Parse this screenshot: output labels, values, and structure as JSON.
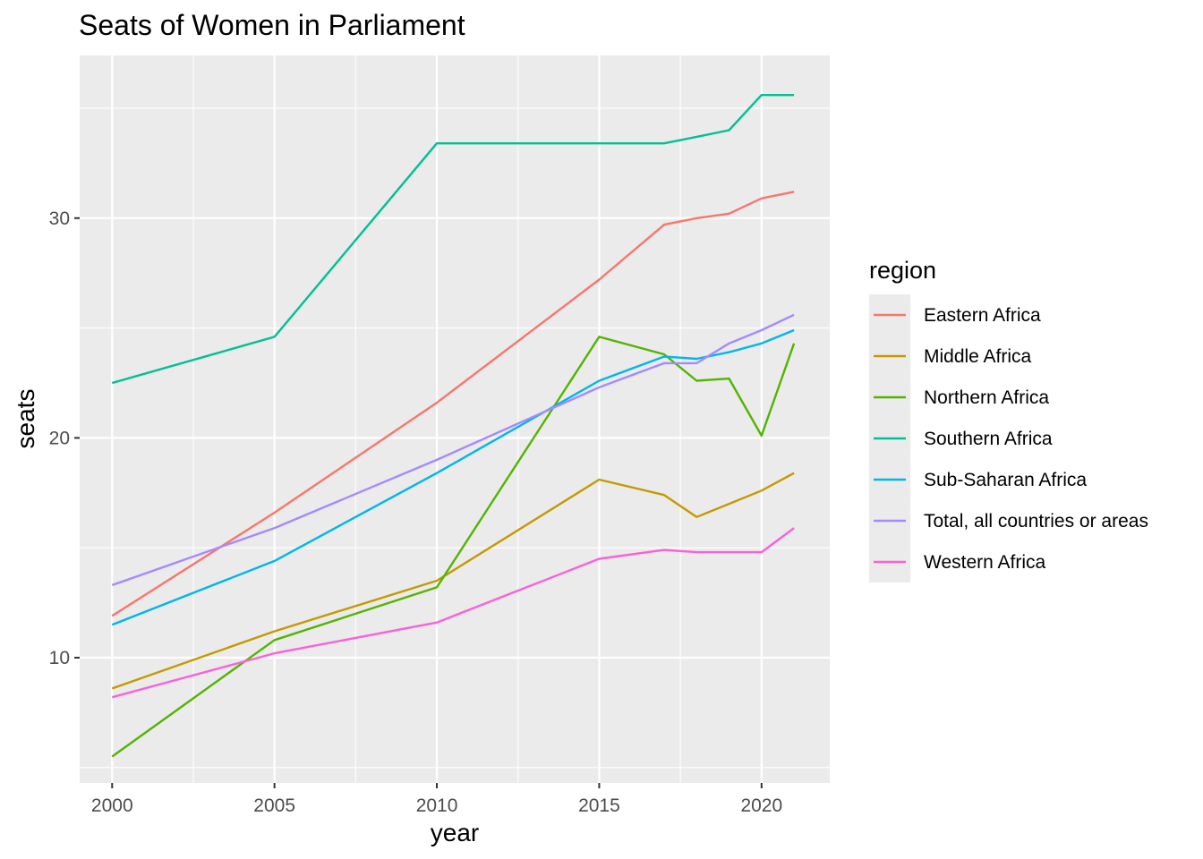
{
  "chart_data": {
    "type": "line",
    "title": "Seats of Women in Parliament",
    "xlabel": "year",
    "ylabel": "seats",
    "xlim": [
      1999,
      2022.1
    ],
    "ylim": [
      4.3,
      37.4
    ],
    "x_ticks": [
      2000,
      2005,
      2010,
      2015,
      2020
    ],
    "y_ticks": [
      10,
      20,
      30
    ],
    "grid": true,
    "legend": {
      "title": "region",
      "placement": "right"
    },
    "series": [
      {
        "name": "Eastern Africa",
        "color": "#F8766D",
        "x": [
          2000,
          2005,
          2010,
          2015,
          2017,
          2018,
          2019,
          2020,
          2021
        ],
        "y": [
          11.9,
          16.6,
          21.6,
          27.2,
          29.7,
          30.0,
          30.2,
          30.9,
          31.2
        ]
      },
      {
        "name": "Middle Africa",
        "color": "#C49A00",
        "x": [
          2000,
          2005,
          2010,
          2015,
          2017,
          2018,
          2019,
          2020,
          2021
        ],
        "y": [
          8.6,
          11.2,
          13.5,
          18.1,
          17.4,
          16.4,
          17.0,
          17.6,
          18.4
        ]
      },
      {
        "name": "Northern Africa",
        "color": "#53B400",
        "x": [
          2000,
          2005,
          2010,
          2015,
          2017,
          2018,
          2019,
          2020,
          2021
        ],
        "y": [
          5.5,
          10.8,
          13.2,
          24.6,
          23.8,
          22.6,
          22.7,
          20.1,
          24.3
        ]
      },
      {
        "name": "Southern Africa",
        "color": "#00C094",
        "x": [
          2000,
          2005,
          2010,
          2015,
          2017,
          2018,
          2019,
          2020,
          2021
        ],
        "y": [
          22.5,
          24.6,
          33.4,
          33.4,
          33.4,
          33.7,
          34.0,
          35.6,
          35.6
        ]
      },
      {
        "name": "Sub-Saharan Africa",
        "color": "#00B6EB",
        "x": [
          2000,
          2005,
          2010,
          2015,
          2017,
          2018,
          2019,
          2020,
          2021
        ],
        "y": [
          11.5,
          14.4,
          18.4,
          22.6,
          23.7,
          23.6,
          23.9,
          24.3,
          24.9
        ]
      },
      {
        "name": "Total, all countries or areas",
        "color": "#A58AFF",
        "x": [
          2000,
          2005,
          2010,
          2015,
          2017,
          2018,
          2019,
          2020,
          2021
        ],
        "y": [
          13.3,
          15.9,
          19.0,
          22.3,
          23.4,
          23.4,
          24.3,
          24.9,
          25.6
        ]
      },
      {
        "name": "Western Africa",
        "color": "#FB61D7",
        "x": [
          2000,
          2005,
          2010,
          2015,
          2017,
          2018,
          2019,
          2020,
          2021
        ],
        "y": [
          8.2,
          10.2,
          11.6,
          14.5,
          14.9,
          14.8,
          14.8,
          14.8,
          15.9
        ]
      }
    ]
  }
}
